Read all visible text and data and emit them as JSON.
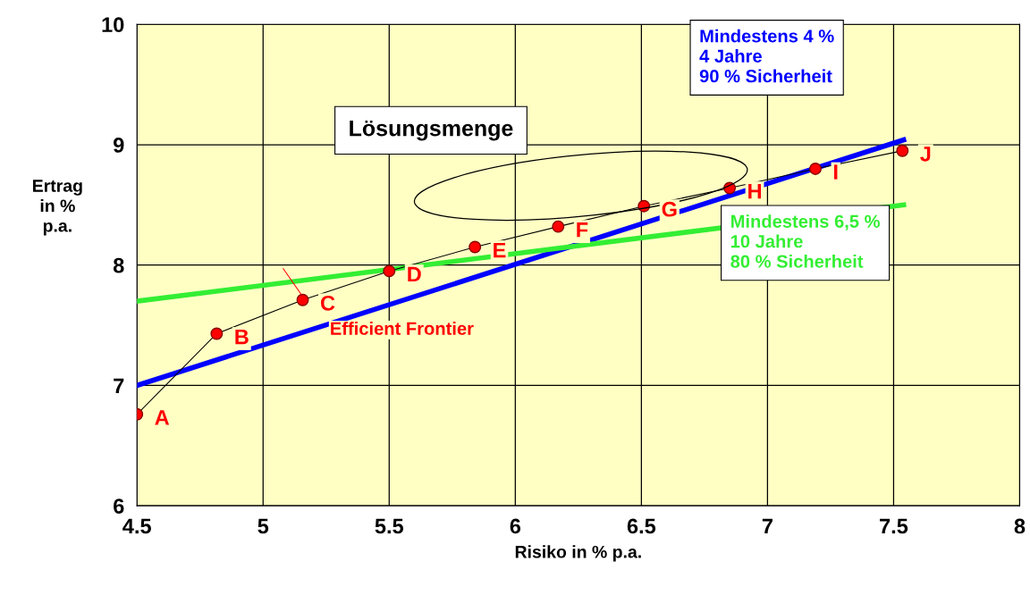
{
  "chart_data": {
    "type": "line",
    "xlabel": "Risiko in % p.a.",
    "ylabel": "Ertrag\nin %\np.a.",
    "xlim": [
      4.5,
      8
    ],
    "ylim": [
      6,
      10
    ],
    "xticks": [
      4.5,
      5,
      5.5,
      6,
      6.5,
      7,
      7.5,
      8
    ],
    "yticks": [
      6,
      7,
      8,
      9,
      10
    ],
    "grid": true,
    "legend": false,
    "marker": "circle",
    "series": [
      {
        "name": "Efficient Frontier",
        "color": "#ff0000",
        "x": [
          4.5,
          4.816,
          5.157,
          5.5,
          5.84,
          6.17,
          6.51,
          6.85,
          7.19,
          7.535
        ],
        "values": [
          6.76,
          7.43,
          7.71,
          7.95,
          8.15,
          8.32,
          8.49,
          8.64,
          8.8,
          8.95
        ]
      },
      {
        "name": "Mindestens 4 %\n4 Jahre\n90 % Sicherheit",
        "color": "#0000ff",
        "marker": "none",
        "x": [
          4.5,
          7.54
        ],
        "values": [
          7.0,
          9.04
        ]
      },
      {
        "name": "Mindestens 6,5 %\n10 Jahre\n80 % Sicherheit",
        "color": "#33ee33",
        "marker": "none",
        "x": [
          4.5,
          7.54
        ],
        "values": [
          7.7,
          8.5
        ]
      }
    ],
    "annotations": [
      "Lösungsmenge",
      {
        "text": "A",
        "x": 4.5,
        "y": 6.76
      },
      {
        "text": "B",
        "x": 4.816,
        "y": 7.43
      },
      {
        "text": "C",
        "x": 5.157,
        "y": 7.71
      },
      {
        "text": "D",
        "x": 5.5,
        "y": 7.95
      },
      {
        "text": "E",
        "x": 5.84,
        "y": 8.15
      },
      {
        "text": "F",
        "x": 6.17,
        "y": 8.32
      },
      {
        "text": "G",
        "x": 6.51,
        "y": 8.49
      },
      {
        "text": "H",
        "x": 6.85,
        "y": 8.64
      },
      {
        "text": "I",
        "x": 7.19,
        "y": 8.8
      },
      {
        "text": "J",
        "x": 7.535,
        "y": 8.95
      }
    ]
  }
}
